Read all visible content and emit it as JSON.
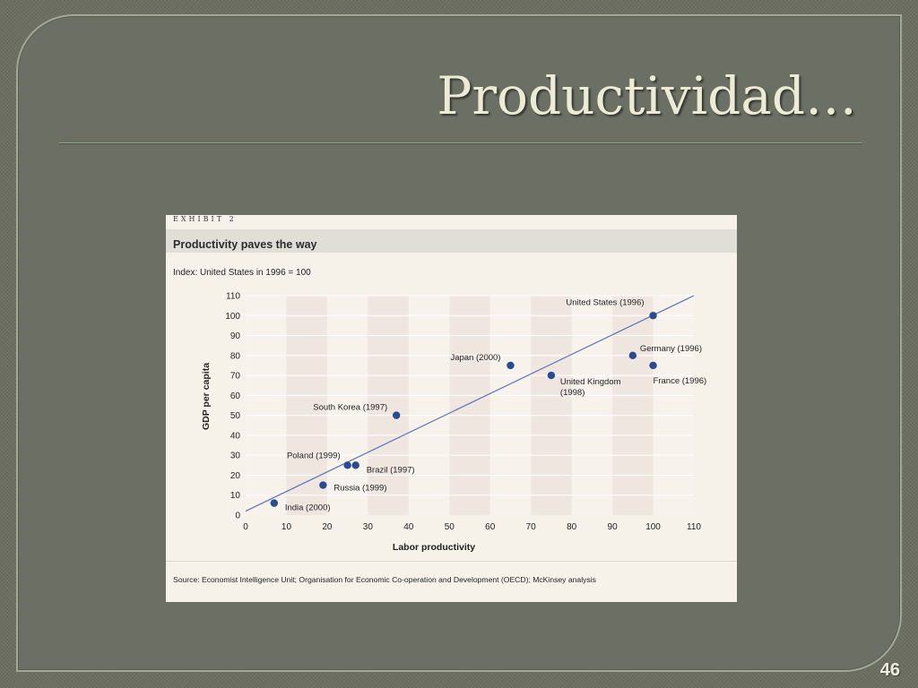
{
  "slide": {
    "title": "Productividad…",
    "page_number": "46"
  },
  "exhibit": {
    "label": "EXHIBIT 2",
    "title": "Productivity paves the way",
    "subtitle": "Index: United States in 1996 = 100",
    "source": "Source: Economist Intelligence Unit; Organisation for Economic Co-operation and Development (OECD); McKinsey analysis"
  },
  "chart_data": {
    "type": "scatter",
    "xlabel": "Labor productivity",
    "ylabel": "GDP per capita",
    "xlim": [
      0,
      110
    ],
    "ylim": [
      0,
      110
    ],
    "x_ticks": [
      0,
      10,
      20,
      30,
      40,
      50,
      60,
      70,
      80,
      90,
      100,
      110
    ],
    "y_ticks": [
      0,
      10,
      20,
      30,
      40,
      50,
      60,
      70,
      80,
      90,
      100,
      110
    ],
    "grid": true,
    "point_color": "#2a4b8f",
    "line_color": "#5a72b8",
    "trend_line": {
      "x": [
        0,
        110
      ],
      "y": [
        2,
        110
      ]
    },
    "points": [
      {
        "label": "United States (1996)",
        "x": 100,
        "y": 100
      },
      {
        "label": "Germany (1996)",
        "x": 95,
        "y": 80
      },
      {
        "label": "France (1996)",
        "x": 100,
        "y": 75
      },
      {
        "label": "Japan (2000)",
        "x": 65,
        "y": 75
      },
      {
        "label": "United Kingdom (1998)",
        "x": 75,
        "y": 70
      },
      {
        "label": "South Korea (1997)",
        "x": 37,
        "y": 50
      },
      {
        "label": "Poland (1999)",
        "x": 25,
        "y": 25
      },
      {
        "label": "Brazil (1997)",
        "x": 27,
        "y": 25
      },
      {
        "label": "Russia (1999)",
        "x": 19,
        "y": 15
      },
      {
        "label": "India (2000)",
        "x": 7,
        "y": 6
      }
    ]
  }
}
